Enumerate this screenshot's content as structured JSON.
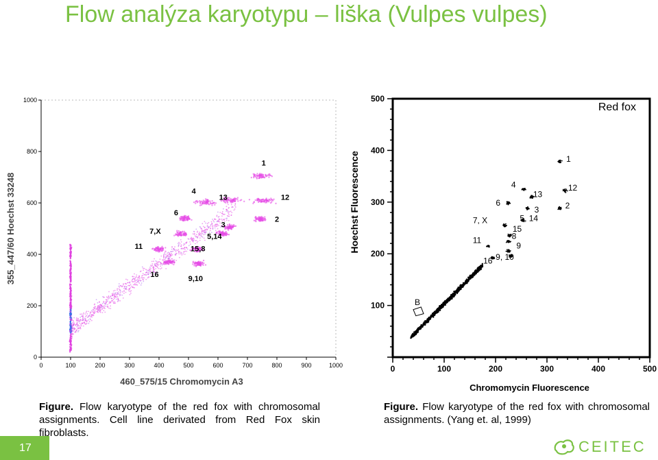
{
  "slide": {
    "title": "Flow analýza karyotypu – liška (Vulpes vulpes)",
    "page_number": "17",
    "logo_text": "CEITEC"
  },
  "captions": {
    "left": {
      "bold": "Figure.",
      "text": " Flow karyotype of the red fox with chromosomal assignments. Cell line derivated from Red Fox skin fibroblasts."
    },
    "right": {
      "bold": "Figure.",
      "text": " Flow karyotype of the red fox with chromosomal assignments. (Yang et. al, 1999)"
    }
  },
  "colors": {
    "accent": "#7ac142",
    "magenta": "#e040e0",
    "blue": "#3070e0"
  },
  "chart_data": [
    {
      "type": "scatter",
      "title": "",
      "xlabel": "460_575/15 Chromomycin A3",
      "ylabel": "355_447/60 Hoechst 33248",
      "xlim": [
        0,
        1000
      ],
      "ylim": [
        0,
        1000
      ],
      "xticks": [
        "0",
        "100",
        "200",
        "300",
        "400",
        "500",
        "600",
        "700",
        "800",
        "900",
        "1000"
      ],
      "yticks": [
        "0",
        "200",
        "400",
        "600",
        "800",
        "1000"
      ],
      "clusters": [
        {
          "label": "1",
          "x": 750,
          "y": 705
        },
        {
          "label": "13",
          "x": 640,
          "y": 612
        },
        {
          "label": "12",
          "x": 755,
          "y": 609
        },
        {
          "label": "4",
          "x": 555,
          "y": 602
        },
        {
          "label": "6",
          "x": 490,
          "y": 540
        },
        {
          "label": "2",
          "x": 745,
          "y": 537
        },
        {
          "label": "3",
          "x": 640,
          "y": 505
        },
        {
          "label": "7,X",
          "x": 475,
          "y": 480
        },
        {
          "label": "5,14",
          "x": 615,
          "y": 480
        },
        {
          "label": "11",
          "x": 400,
          "y": 420
        },
        {
          "label": "15,8",
          "x": 530,
          "y": 420
        },
        {
          "label": "16",
          "x": 435,
          "y": 370
        },
        {
          "label": "9,10",
          "x": 535,
          "y": 365
        }
      ],
      "labels": [
        {
          "text": "1",
          "x": 755,
          "y": 745
        },
        {
          "text": "13",
          "x": 618,
          "y": 612
        },
        {
          "text": "12",
          "x": 828,
          "y": 612
        },
        {
          "text": "4",
          "x": 518,
          "y": 636
        },
        {
          "text": "6",
          "x": 458,
          "y": 552
        },
        {
          "text": "2",
          "x": 800,
          "y": 527
        },
        {
          "text": "3",
          "x": 618,
          "y": 505
        },
        {
          "text": "7,X",
          "x": 387,
          "y": 480
        },
        {
          "text": "5,14",
          "x": 588,
          "y": 460
        },
        {
          "text": "11",
          "x": 331,
          "y": 422
        },
        {
          "text": "15,8",
          "x": 532,
          "y": 412
        },
        {
          "text": "16",
          "x": 385,
          "y": 312
        },
        {
          "text": "9,10",
          "x": 524,
          "y": 296
        }
      ]
    },
    {
      "type": "scatter",
      "title": "Red fox",
      "xlabel": "Chromomycin Fluorescence",
      "ylabel": "Hoechst Fluorescence",
      "xlim": [
        0,
        500
      ],
      "ylim": [
        0,
        500
      ],
      "xticks": [
        "0",
        "100",
        "200",
        "300",
        "400",
        "500"
      ],
      "yticks": [
        "100",
        "200",
        "300",
        "400",
        "500"
      ],
      "clusters": [
        {
          "label": "1",
          "x": 325,
          "y": 378
        },
        {
          "label": "12",
          "x": 335,
          "y": 322
        },
        {
          "label": "2",
          "x": 325,
          "y": 288
        },
        {
          "label": "4",
          "x": 255,
          "y": 325
        },
        {
          "label": "13",
          "x": 270,
          "y": 310
        },
        {
          "label": "6",
          "x": 225,
          "y": 298
        },
        {
          "label": "3",
          "x": 262,
          "y": 288
        },
        {
          "label": "5, 14",
          "x": 253,
          "y": 265
        },
        {
          "label": "7, X",
          "x": 218,
          "y": 255
        },
        {
          "label": "15",
          "x": 228,
          "y": 236
        },
        {
          "label": "8",
          "x": 225,
          "y": 224
        },
        {
          "label": "11",
          "x": 185,
          "y": 215
        },
        {
          "label": "9",
          "x": 225,
          "y": 205
        },
        {
          "label": "9, 10",
          "x": 230,
          "y": 196
        },
        {
          "label": "16",
          "x": 195,
          "y": 192
        }
      ],
      "labels": [
        {
          "text": "1",
          "x": 342,
          "y": 378
        },
        {
          "text": "12",
          "x": 350,
          "y": 322
        },
        {
          "text": "2",
          "x": 340,
          "y": 288
        },
        {
          "text": "4",
          "x": 235,
          "y": 328
        },
        {
          "text": "13",
          "x": 282,
          "y": 310
        },
        {
          "text": "6",
          "x": 205,
          "y": 293
        },
        {
          "text": "3",
          "x": 280,
          "y": 280
        },
        {
          "text": "5, 14",
          "x": 265,
          "y": 263
        },
        {
          "text": "7, X",
          "x": 170,
          "y": 259
        },
        {
          "text": "15",
          "x": 242,
          "y": 243
        },
        {
          "text": "8",
          "x": 236,
          "y": 229
        },
        {
          "text": "11",
          "x": 164,
          "y": 221
        },
        {
          "text": "9",
          "x": 245,
          "y": 210
        },
        {
          "text": "9, 10",
          "x": 218,
          "y": 188
        },
        {
          "text": "16",
          "x": 185,
          "y": 181
        },
        {
          "text": "B",
          "x": 48,
          "y": 101
        }
      ]
    }
  ]
}
